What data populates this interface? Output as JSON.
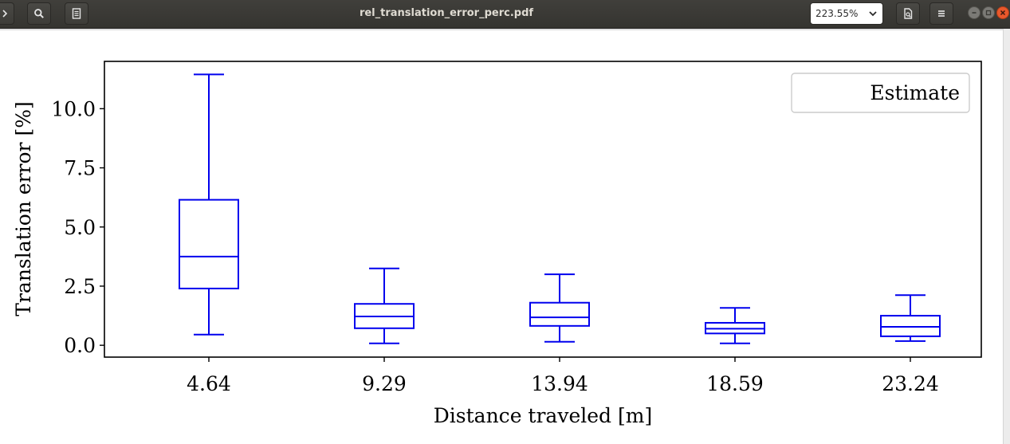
{
  "window": {
    "title": "rel_translation_error_perc.pdf",
    "zoom": "223.55%"
  },
  "toolbar": {
    "icons": [
      "chevron-right-icon",
      "search-icon",
      "document-icon",
      "print-preview-icon",
      "hamburger-menu-icon",
      "chevron-down-icon"
    ]
  },
  "chart_data": {
    "type": "box",
    "categories": [
      "4.64",
      "9.29",
      "13.94",
      "18.59",
      "23.24"
    ],
    "series": [
      {
        "name": "Estimate",
        "color": "#0000ee",
        "boxes": [
          {
            "whisker_low": 0.45,
            "q1": 2.4,
            "median": 3.75,
            "q3": 6.15,
            "whisker_high": 11.45
          },
          {
            "whisker_low": 0.08,
            "q1": 0.72,
            "median": 1.22,
            "q3": 1.75,
            "whisker_high": 3.25
          },
          {
            "whisker_low": 0.15,
            "q1": 0.82,
            "median": 1.18,
            "q3": 1.8,
            "whisker_high": 3.0
          },
          {
            "whisker_low": 0.08,
            "q1": 0.5,
            "median": 0.7,
            "q3": 0.95,
            "whisker_high": 1.58
          },
          {
            "whisker_low": 0.18,
            "q1": 0.38,
            "median": 0.78,
            "q3": 1.25,
            "whisker_high": 2.12
          }
        ]
      }
    ],
    "xlabel": "Distance traveled [m]",
    "ylabel": "Translation error [%]",
    "ylim": [
      -0.5,
      12.0
    ],
    "yticks": [
      0.0,
      2.5,
      5.0,
      7.5,
      10.0
    ],
    "ytick_labels": [
      "0.0",
      "2.5",
      "5.0",
      "7.5",
      "10.0"
    ],
    "legend": {
      "entries": [
        "Estimate"
      ],
      "placement": "top-right"
    },
    "grid": false
  }
}
